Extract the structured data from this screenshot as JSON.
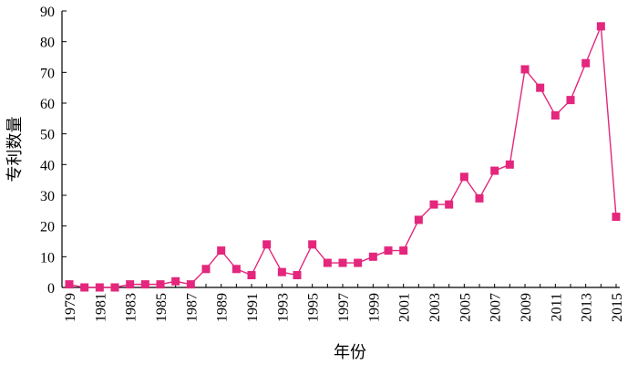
{
  "chart_data": {
    "type": "line",
    "xlabel": "年份",
    "ylabel": "专利数量",
    "xlim": [
      1979,
      2015
    ],
    "ylim": [
      0,
      90
    ],
    "y_ticks": [
      0,
      10,
      20,
      30,
      40,
      50,
      60,
      70,
      80,
      90
    ],
    "x_tick_labels": [
      "1979",
      "1981",
      "1983",
      "1985",
      "1987",
      "1989",
      "1991",
      "1993",
      "1995",
      "1997",
      "1999",
      "2001",
      "2003",
      "2005",
      "2007",
      "2009",
      "2011",
      "2013",
      "2015"
    ],
    "grid": false,
    "legend": "none",
    "colors": {
      "series": "#e4267d",
      "axis": "#000000"
    },
    "series": [
      {
        "x": [
          1979,
          1980,
          1981,
          1982,
          1983,
          1984,
          1985,
          1986,
          1987,
          1988,
          1989,
          1990,
          1991,
          1992,
          1993,
          1994,
          1995,
          1996,
          1997,
          1998,
          1999,
          2000,
          2001,
          2002,
          2003,
          2004,
          2005,
          2006,
          2007,
          2008,
          2009,
          2010,
          2011,
          2012,
          2013,
          2014,
          2015
        ],
        "values": [
          1,
          0,
          0,
          0,
          1,
          1,
          1,
          2,
          1,
          6,
          12,
          6,
          4,
          14,
          5,
          4,
          14,
          8,
          8,
          8,
          10,
          12,
          12,
          22,
          27,
          27,
          36,
          29,
          38,
          40,
          71,
          65,
          56,
          61,
          73,
          85,
          23
        ]
      }
    ]
  }
}
